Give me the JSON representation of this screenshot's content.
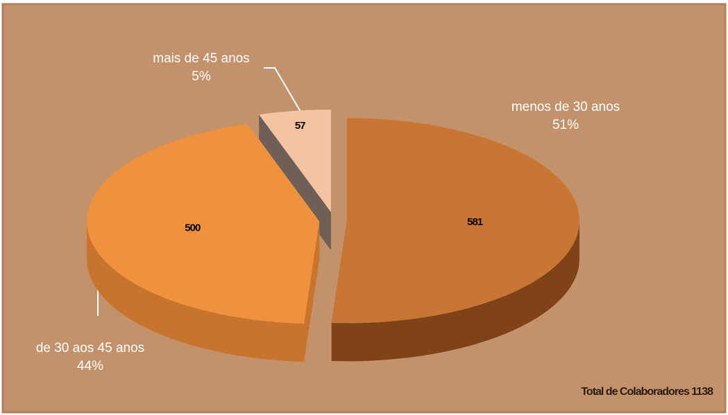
{
  "chart_data": {
    "type": "pie3d",
    "categories": [
      "menos de 30 anos",
      "de 30 aos 45 anos",
      "mais de 45 anos"
    ],
    "values": [
      581,
      500,
      57
    ],
    "percent_labels": [
      "51%",
      "44%",
      "5%"
    ],
    "colors": [
      "#c97632",
      "#f0913e",
      "#f6c3a2"
    ],
    "side_colors": [
      "#7e4418",
      "#c8742c",
      "#6e6058"
    ],
    "total_label": "Total de Colaboradores 1138"
  }
}
